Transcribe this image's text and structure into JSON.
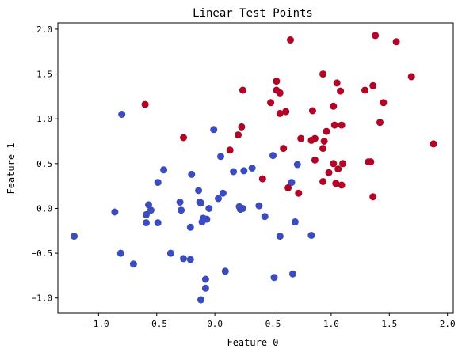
{
  "chart_data": {
    "type": "scatter",
    "title": "Linear Test Points",
    "xlabel": "Feature 0",
    "ylabel": "Feature 1",
    "xlim": [
      -1.35,
      2.05
    ],
    "ylim": [
      -1.17,
      2.07
    ],
    "xticks": [
      -1.0,
      -0.5,
      0.0,
      0.5,
      1.0,
      1.5,
      2.0
    ],
    "xtick_labels": [
      "−1.0",
      "−0.5",
      "0.0",
      "0.5",
      "1.0",
      "1.5",
      "2.0"
    ],
    "yticks": [
      -1.0,
      -0.5,
      0.0,
      0.5,
      1.0,
      1.5,
      2.0
    ],
    "ytick_labels": [
      "−1.0",
      "−0.5",
      "0.0",
      "0.5",
      "1.0",
      "1.5",
      "2.0"
    ],
    "grid": false,
    "legend": false,
    "series": [
      {
        "color": "#3b4cc0",
        "points": [
          [
            -1.21,
            -0.31
          ],
          [
            -0.86,
            -0.04
          ],
          [
            -0.8,
            1.05
          ],
          [
            -0.81,
            -0.5
          ],
          [
            -0.7,
            -0.62
          ],
          [
            -0.59,
            -0.16
          ],
          [
            -0.59,
            -0.07
          ],
          [
            -0.57,
            0.04
          ],
          [
            -0.55,
            -0.02
          ],
          [
            -0.49,
            0.29
          ],
          [
            -0.49,
            -0.16
          ],
          [
            -0.44,
            0.43
          ],
          [
            -0.38,
            -0.5
          ],
          [
            -0.3,
            0.07
          ],
          [
            -0.29,
            -0.02
          ],
          [
            -0.27,
            -0.56
          ],
          [
            -0.21,
            -0.57
          ],
          [
            -0.21,
            -0.21
          ],
          [
            -0.2,
            0.38
          ],
          [
            -0.14,
            0.2
          ],
          [
            -0.13,
            0.07
          ],
          [
            -0.12,
            0.06
          ],
          [
            -0.11,
            -0.15
          ],
          [
            -0.1,
            -0.11
          ],
          [
            -0.08,
            -0.79
          ],
          [
            -0.08,
            -0.89
          ],
          [
            -0.07,
            -0.12
          ],
          [
            -0.05,
            0.0
          ],
          [
            -0.12,
            -1.02
          ],
          [
            -0.01,
            0.88
          ],
          [
            0.03,
            0.11
          ],
          [
            0.05,
            0.58
          ],
          [
            0.07,
            0.17
          ],
          [
            0.09,
            -0.7
          ],
          [
            0.16,
            0.41
          ],
          [
            0.21,
            0.02
          ],
          [
            0.22,
            -0.01
          ],
          [
            0.24,
            0.0
          ],
          [
            0.25,
            0.42
          ],
          [
            0.32,
            0.45
          ],
          [
            0.38,
            0.03
          ],
          [
            0.43,
            -0.09
          ],
          [
            0.5,
            0.59
          ],
          [
            0.51,
            -0.77
          ],
          [
            0.56,
            -0.31
          ],
          [
            0.66,
            0.29
          ],
          [
            0.67,
            -0.73
          ],
          [
            0.69,
            -0.15
          ],
          [
            0.71,
            0.49
          ],
          [
            0.83,
            -0.3
          ]
        ]
      },
      {
        "color": "#b40426",
        "points": [
          [
            -0.6,
            1.16
          ],
          [
            -0.27,
            0.79
          ],
          [
            0.13,
            0.65
          ],
          [
            0.2,
            0.82
          ],
          [
            0.23,
            0.91
          ],
          [
            0.24,
            1.32
          ],
          [
            0.41,
            0.33
          ],
          [
            0.48,
            1.18
          ],
          [
            0.53,
            1.42
          ],
          [
            0.53,
            1.32
          ],
          [
            0.56,
            1.29
          ],
          [
            0.56,
            1.06
          ],
          [
            0.59,
            0.67
          ],
          [
            0.61,
            1.08
          ],
          [
            0.63,
            0.23
          ],
          [
            0.65,
            1.88
          ],
          [
            0.72,
            0.17
          ],
          [
            0.74,
            0.78
          ],
          [
            0.83,
            0.76
          ],
          [
            0.84,
            1.09
          ],
          [
            0.86,
            0.78
          ],
          [
            0.86,
            0.54
          ],
          [
            0.93,
            1.5
          ],
          [
            0.93,
            0.67
          ],
          [
            0.94,
            0.75
          ],
          [
            0.93,
            0.3
          ],
          [
            0.96,
            0.86
          ],
          [
            0.98,
            0.4
          ],
          [
            1.02,
            1.14
          ],
          [
            1.02,
            0.5
          ],
          [
            1.03,
            0.93
          ],
          [
            1.04,
            0.28
          ],
          [
            1.05,
            1.4
          ],
          [
            1.06,
            0.44
          ],
          [
            1.08,
            1.31
          ],
          [
            1.09,
            0.93
          ],
          [
            1.09,
            0.26
          ],
          [
            1.1,
            0.5
          ],
          [
            1.29,
            1.32
          ],
          [
            1.32,
            0.52
          ],
          [
            1.34,
            0.52
          ],
          [
            1.36,
            1.37
          ],
          [
            1.36,
            0.13
          ],
          [
            1.38,
            1.93
          ],
          [
            1.42,
            0.96
          ],
          [
            1.45,
            1.18
          ],
          [
            1.56,
            1.86
          ],
          [
            1.69,
            1.47
          ],
          [
            1.88,
            0.72
          ]
        ]
      }
    ]
  }
}
